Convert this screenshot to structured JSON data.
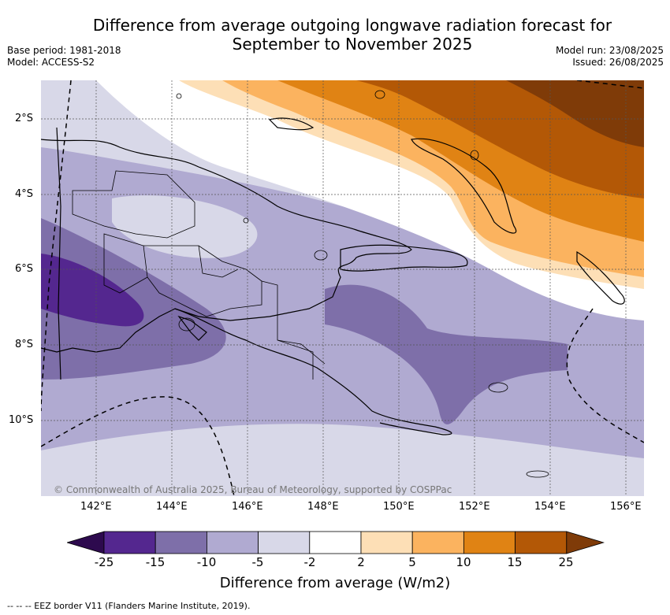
{
  "title_line1": "Difference from average outgoing longwave radiation forecast for",
  "title_line2": "September to November 2025",
  "base_period": "Base period: 1981-2018",
  "model": "Model: ACCESS-S2",
  "model_run": "Model run: 23/08/2025",
  "issued": "Issued: 26/08/2025",
  "lat_labels": [
    "2°S",
    "4°S",
    "6°S",
    "8°S",
    "10°S"
  ],
  "lon_labels": [
    "142°E",
    "144°E",
    "146°E",
    "148°E",
    "150°E",
    "152°E",
    "154°E",
    "156°E"
  ],
  "copyright": "© Commonwealth of Australia 2025, Bureau of Meteorology, supported by COSPPac",
  "colorbar": {
    "ticks": [
      "-25",
      "-15",
      "-10",
      "-5",
      "-2",
      "2",
      "5",
      "10",
      "15",
      "25"
    ],
    "colors": [
      "#2d0a4e",
      "#54278f",
      "#7e6fa9",
      "#b0aad1",
      "#d8d8e8",
      "#ffffff",
      "#fddfb6",
      "#fbb35f",
      "#e08314",
      "#b35806",
      "#7f3b08"
    ],
    "label": "Difference from average (W/m2)"
  },
  "footnote": "--  --  -- EEZ border V11 (Flanders Marine Institute, 2019)."
}
